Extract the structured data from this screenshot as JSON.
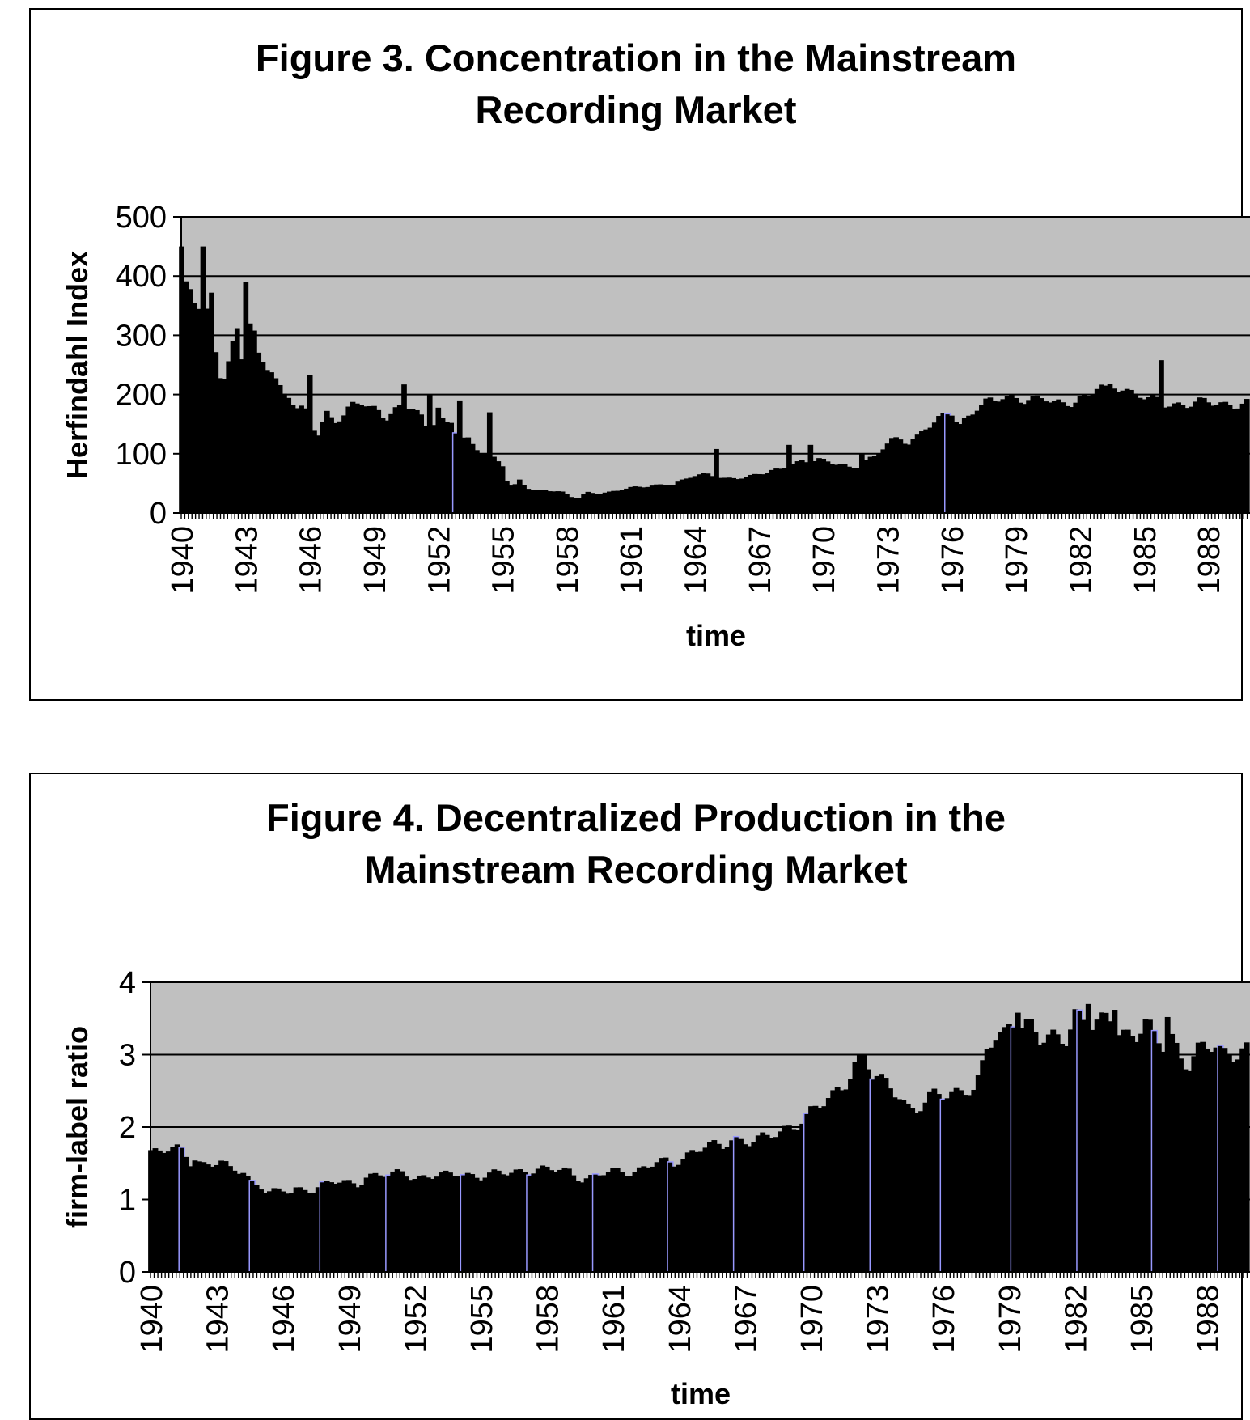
{
  "colors": {
    "plot_bg": "#c0c0c0",
    "bar": "#000000",
    "highlight": "#9999ff",
    "grid": "#000000"
  },
  "figure3": {
    "title_line1": "Figure 3. Concentration in the Mainstream",
    "title_line2": "Recording Market"
  },
  "figure4": {
    "title_line1": "Figure 4. Decentralized Production in the",
    "title_line2": "Mainstream Recording Market"
  },
  "chart_data": [
    {
      "type": "bar",
      "title": "Figure 3. Concentration in the Mainstream Recording Market",
      "xlabel": "time",
      "ylabel": "Herfindahl Index",
      "ylim": [
        0,
        500
      ],
      "yticks": [
        0,
        100,
        200,
        300,
        400,
        500
      ],
      "xlim": [
        1940,
        1990
      ],
      "xticks": [
        "1940",
        "1943",
        "1946",
        "1949",
        "1952",
        "1955",
        "1958",
        "1961",
        "1964",
        "1967",
        "1970",
        "1973",
        "1976",
        "1979",
        "1982",
        "1985",
        "1988"
      ],
      "grid": "horizontal",
      "legend": "none",
      "bar_width_years": 0.18,
      "knots": [
        [
          1940,
          450
        ],
        [
          1940.1,
          385
        ],
        [
          1940.4,
          378
        ],
        [
          1940.6,
          362
        ],
        [
          1940.9,
          340
        ],
        [
          1941.0,
          333
        ],
        [
          1941.4,
          322
        ],
        [
          1941.8,
          240
        ],
        [
          1942.0,
          232
        ],
        [
          1942.3,
          265
        ],
        [
          1942.6,
          320
        ],
        [
          1943.0,
          225
        ],
        [
          1943.3,
          262
        ],
        [
          1943.5,
          262
        ],
        [
          1943.8,
          255
        ],
        [
          1944.2,
          245
        ],
        [
          1944.5,
          220
        ],
        [
          1944.8,
          205
        ],
        [
          1945.0,
          205
        ],
        [
          1945.4,
          175
        ],
        [
          1945.8,
          170
        ],
        [
          1946.0,
          155
        ],
        [
          1946.4,
          130
        ],
        [
          1946.8,
          170
        ],
        [
          1947.2,
          160
        ],
        [
          1947.6,
          165
        ],
        [
          1948.0,
          180
        ],
        [
          1948.4,
          185
        ],
        [
          1948.8,
          175
        ],
        [
          1949.2,
          175
        ],
        [
          1949.6,
          165
        ],
        [
          1950.0,
          175
        ],
        [
          1950.4,
          180
        ],
        [
          1950.8,
          175
        ],
        [
          1951.2,
          160
        ],
        [
          1951.4,
          145
        ],
        [
          1951.7,
          138
        ],
        [
          1952.0,
          185
        ],
        [
          1952.3,
          150
        ],
        [
          1952.7,
          155
        ],
        [
          1953.0,
          115
        ],
        [
          1953.3,
          125
        ],
        [
          1953.7,
          110
        ],
        [
          1954.0,
          105
        ],
        [
          1954.4,
          100
        ],
        [
          1954.8,
          90
        ],
        [
          1955.0,
          85
        ],
        [
          1955.3,
          45
        ],
        [
          1955.6,
          45
        ],
        [
          1955.8,
          55
        ],
        [
          1956.2,
          42
        ],
        [
          1956.6,
          38
        ],
        [
          1957.0,
          40
        ],
        [
          1957.4,
          38
        ],
        [
          1957.8,
          35
        ],
        [
          1958.2,
          27
        ],
        [
          1958.6,
          25
        ],
        [
          1959.0,
          35
        ],
        [
          1959.5,
          34
        ],
        [
          1960.0,
          35
        ],
        [
          1960.5,
          38
        ],
        [
          1961.0,
          42
        ],
        [
          1961.5,
          45
        ],
        [
          1962.0,
          47
        ],
        [
          1962.5,
          48
        ],
        [
          1963.0,
          47
        ],
        [
          1963.5,
          55
        ],
        [
          1964.0,
          65
        ],
        [
          1964.5,
          68
        ],
        [
          1965.0,
          62
        ],
        [
          1965.5,
          56
        ],
        [
          1966.0,
          58
        ],
        [
          1966.5,
          62
        ],
        [
          1967.0,
          68
        ],
        [
          1967.5,
          70
        ],
        [
          1968.0,
          72
        ],
        [
          1968.5,
          80
        ],
        [
          1969.0,
          88
        ],
        [
          1969.5,
          90
        ],
        [
          1969.8,
          92
        ],
        [
          1970.2,
          85
        ],
        [
          1970.6,
          82
        ],
        [
          1971.0,
          80
        ],
        [
          1971.3,
          75
        ],
        [
          1971.6,
          80
        ],
        [
          1972.0,
          90
        ],
        [
          1972.4,
          95
        ],
        [
          1972.8,
          108
        ],
        [
          1973.2,
          120
        ],
        [
          1973.6,
          125
        ],
        [
          1974.0,
          120
        ],
        [
          1974.4,
          130
        ],
        [
          1974.8,
          145
        ],
        [
          1975.2,
          150
        ],
        [
          1975.6,
          160
        ],
        [
          1976.0,
          170
        ],
        [
          1976.4,
          150
        ],
        [
          1976.8,
          165
        ],
        [
          1977.2,
          180
        ],
        [
          1977.6,
          185
        ],
        [
          1978.0,
          185
        ],
        [
          1978.4,
          195
        ],
        [
          1978.8,
          195
        ],
        [
          1979.2,
          195
        ],
        [
          1979.6,
          195
        ],
        [
          1980.0,
          190
        ],
        [
          1980.4,
          190
        ],
        [
          1980.8,
          185
        ],
        [
          1981.2,
          185
        ],
        [
          1981.6,
          190
        ],
        [
          1982.0,
          195
        ],
        [
          1982.4,
          195
        ],
        [
          1982.8,
          210
        ],
        [
          1983.2,
          210
        ],
        [
          1983.6,
          215
        ],
        [
          1984.0,
          215
        ],
        [
          1984.4,
          205
        ],
        [
          1984.8,
          200
        ],
        [
          1985.2,
          190
        ],
        [
          1985.6,
          188
        ],
        [
          1986.0,
          185
        ]
      ],
      "highlights": [
        1952.85,
        1975.8
      ],
      "spikes": [
        [
          1940.0,
          450
        ],
        [
          1941.0,
          450
        ],
        [
          1941.4,
          372
        ],
        [
          1943.0,
          390
        ],
        [
          1943.2,
          320
        ],
        [
          1943.5,
          308
        ],
        [
          1946.0,
          233
        ],
        [
          1950.5,
          217
        ],
        [
          1951.7,
          200
        ],
        [
          1953.1,
          190
        ],
        [
          1954.5,
          170
        ],
        [
          1965.0,
          108
        ],
        [
          1968.5,
          115
        ],
        [
          1969.5,
          115
        ],
        [
          1971.8,
          100
        ],
        [
          1983.2,
          215
        ],
        [
          1985.8,
          258
        ]
      ]
    },
    {
      "type": "bar",
      "title": "Figure 4. Decentralized Production in the Mainstream Recording Market",
      "xlabel": "time",
      "ylabel": "firm-label ratio",
      "ylim": [
        0,
        4
      ],
      "yticks": [
        0,
        1,
        2,
        3,
        4
      ],
      "xlim": [
        1940,
        1990
      ],
      "xticks": [
        "1940",
        "1943",
        "1946",
        "1949",
        "1952",
        "1955",
        "1958",
        "1961",
        "1964",
        "1967",
        "1970",
        "1973",
        "1976",
        "1979",
        "1982",
        "1985",
        "1988"
      ],
      "grid": "horizontal",
      "legend": "none",
      "bar_width_years": 0.18,
      "knots": [
        [
          1940,
          1.67
        ],
        [
          1941.5,
          1.67
        ],
        [
          1941.9,
          1.5
        ],
        [
          1942.0,
          1.6
        ],
        [
          1942.3,
          1.5
        ],
        [
          1943.2,
          1.5
        ],
        [
          1943.6,
          1.4
        ],
        [
          1944.3,
          1.4
        ],
        [
          1944.5,
          1.27
        ],
        [
          1945.0,
          1.2
        ],
        [
          1945.3,
          1.1
        ],
        [
          1946.4,
          1.1
        ],
        [
          1946.6,
          1.15
        ],
        [
          1947.4,
          1.15
        ],
        [
          1947.8,
          1.2
        ],
        [
          1948.3,
          1.23
        ],
        [
          1949.5,
          1.23
        ],
        [
          1949.8,
          1.33
        ],
        [
          1951.0,
          1.33
        ],
        [
          1951.5,
          1.38
        ],
        [
          1952.0,
          1.32
        ],
        [
          1953.5,
          1.32
        ],
        [
          1954.1,
          1.38
        ],
        [
          1955.0,
          1.32
        ],
        [
          1956.0,
          1.35
        ],
        [
          1957.0,
          1.42
        ],
        [
          1958.0,
          1.4
        ],
        [
          1959.0,
          1.4
        ],
        [
          1959.6,
          1.3
        ],
        [
          1960.0,
          1.3
        ],
        [
          1961.0,
          1.38
        ],
        [
          1962.0,
          1.4
        ],
        [
          1963.0,
          1.5
        ],
        [
          1963.8,
          1.5
        ],
        [
          1964.2,
          1.58
        ],
        [
          1964.6,
          1.68
        ],
        [
          1965.0,
          1.72
        ],
        [
          1966.0,
          1.72
        ],
        [
          1966.5,
          1.85
        ],
        [
          1967.0,
          1.83
        ],
        [
          1968.0,
          1.83
        ],
        [
          1968.5,
          1.9
        ],
        [
          1969.0,
          2.0
        ],
        [
          1969.5,
          2.1
        ],
        [
          1970.0,
          2.2
        ],
        [
          1970.6,
          2.3
        ],
        [
          1971.0,
          2.4
        ],
        [
          1971.5,
          2.6
        ],
        [
          1972.0,
          2.9
        ],
        [
          1972.4,
          3.0
        ],
        [
          1972.8,
          2.7
        ],
        [
          1973.2,
          2.6
        ],
        [
          1973.6,
          2.55
        ],
        [
          1974.0,
          2.5
        ],
        [
          1974.4,
          2.3
        ],
        [
          1974.8,
          2.25
        ],
        [
          1975.2,
          2.3
        ],
        [
          1975.6,
          2.4
        ],
        [
          1976.0,
          2.45
        ],
        [
          1976.5,
          2.5
        ],
        [
          1977.0,
          2.55
        ],
        [
          1977.3,
          2.55
        ],
        [
          1977.5,
          2.5
        ],
        [
          1977.8,
          2.75
        ],
        [
          1978.0,
          3.0
        ],
        [
          1978.4,
          3.25
        ],
        [
          1978.8,
          3.3
        ],
        [
          1979.2,
          3.55
        ],
        [
          1979.6,
          3.45
        ],
        [
          1980.0,
          3.35
        ],
        [
          1980.4,
          3.15
        ],
        [
          1980.8,
          3.2
        ],
        [
          1981.2,
          3.25
        ],
        [
          1981.6,
          3.3
        ],
        [
          1982.0,
          3.6
        ],
        [
          1982.4,
          3.45
        ],
        [
          1982.8,
          3.35
        ],
        [
          1983.2,
          3.4
        ],
        [
          1983.6,
          3.55
        ],
        [
          1984.0,
          3.4
        ],
        [
          1984.4,
          3.3
        ],
        [
          1984.8,
          3.25
        ],
        [
          1985.2,
          3.4
        ],
        [
          1985.6,
          3.2
        ],
        [
          1986.0,
          3.15
        ],
        [
          1986.4,
          3.3
        ],
        [
          1986.8,
          3.0
        ],
        [
          1987.2,
          2.85
        ],
        [
          1987.6,
          3.0
        ],
        [
          1988.0,
          3.05
        ],
        [
          1988.4,
          3.15
        ],
        [
          1988.8,
          3.05
        ],
        [
          1989.2,
          3.05
        ],
        [
          1989.6,
          3.1
        ],
        [
          1990.0,
          3.0
        ]
      ],
      "highlights": [
        1941.5,
        1944.6,
        1947.8,
        1950.8,
        1954.2,
        1957.3,
        1960.3,
        1963.6,
        1966.6,
        1969.8,
        1972.8,
        1976.1,
        1979.3,
        1982.3,
        1985.6,
        1988.6
      ],
      "spikes": [
        [
          1972.3,
          3.0
        ],
        [
          1972.5,
          3.0
        ],
        [
          1979.5,
          3.58
        ],
        [
          1982.6,
          3.7
        ],
        [
          1983.8,
          3.62
        ],
        [
          1986.3,
          3.52
        ]
      ]
    }
  ]
}
